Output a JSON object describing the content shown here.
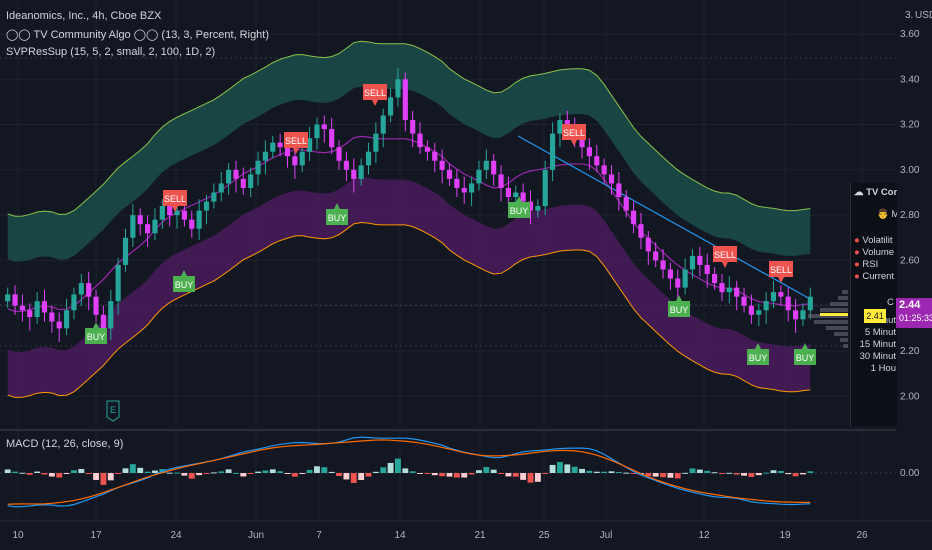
{
  "header": {
    "symbol_line": "Ideanomics, Inc., 4h, Cboe BZX",
    "indicator_1": "◯◯ TV Community Algo ◯◯ (13, 3, Percent, Right)",
    "indicator_2": "SVPResSup (15, 5, 2, small, 2, 100, 1D, 2)",
    "macd_label": "MACD (12, 26, close, 9)",
    "currency": "USD",
    "top_value": "3."
  },
  "price_axis": {
    "ticks": [
      "3.60",
      "3.40",
      "3.20",
      "3.00",
      "2.80",
      "2.60",
      "2.40",
      "2.20",
      "2.00"
    ],
    "current_price": "2.44",
    "countdown": "01:25:33",
    "small_price": "2.41",
    "macd_tick": "0.00"
  },
  "time_axis": [
    "10",
    "17",
    "24",
    "Jun",
    "7",
    "14",
    "21",
    "25",
    "Jul",
    "12",
    "19",
    "26"
  ],
  "info_panel": {
    "title": "☁ TV Comm",
    "row2": "👨 M",
    "items": [
      "Volatilit",
      "Volume",
      "RSI",
      "Current"
    ],
    "small": "C",
    "timeframes": [
      "1 Minut",
      "5 Minut",
      "15 Minut",
      "30 Minut",
      "1 Hou"
    ]
  },
  "signals": {
    "buy": "BUY",
    "sell": "SELL",
    "earnings": "E"
  },
  "colors": {
    "background": "#131722",
    "bull": "#26a69a",
    "bear": "#e040fb",
    "upper_band": "#1b4d4a",
    "lower_band": "#4a1b5c",
    "buy": "#4caf50",
    "sell": "#ef5350",
    "current_price_box": "#9c27b0"
  },
  "chart_data": {
    "type": "candlestick",
    "y_range": [
      1.86,
      3.75
    ],
    "price_series": [
      2.45,
      2.4,
      2.38,
      2.35,
      2.42,
      2.37,
      2.33,
      2.3,
      2.38,
      2.45,
      2.5,
      2.44,
      2.36,
      2.3,
      2.42,
      2.58,
      2.7,
      2.8,
      2.76,
      2.72,
      2.78,
      2.84,
      2.8,
      2.82,
      2.78,
      2.74,
      2.82,
      2.86,
      2.9,
      2.94,
      3.0,
      2.96,
      2.92,
      2.98,
      3.04,
      3.08,
      3.12,
      3.1,
      3.06,
      3.02,
      3.08,
      3.14,
      3.2,
      3.18,
      3.1,
      3.04,
      3.0,
      2.96,
      3.02,
      3.08,
      3.16,
      3.24,
      3.32,
      3.4,
      3.22,
      3.16,
      3.1,
      3.08,
      3.04,
      3.0,
      2.96,
      2.92,
      2.9,
      2.94,
      3.0,
      3.04,
      2.98,
      2.92,
      2.88,
      2.9,
      2.86,
      2.82,
      2.84,
      3.0,
      3.16,
      3.22,
      3.18,
      3.14,
      3.1,
      3.06,
      3.02,
      2.98,
      2.94,
      2.88,
      2.82,
      2.76,
      2.7,
      2.64,
      2.6,
      2.56,
      2.52,
      2.48,
      2.56,
      2.62,
      2.58,
      2.54,
      2.5,
      2.46,
      2.48,
      2.44,
      2.4,
      2.36,
      2.38,
      2.42,
      2.46,
      2.44,
      2.38,
      2.34,
      2.38,
      2.44
    ],
    "buy_signals": 6,
    "sell_signals": 5,
    "macd_zero_line": 0
  }
}
